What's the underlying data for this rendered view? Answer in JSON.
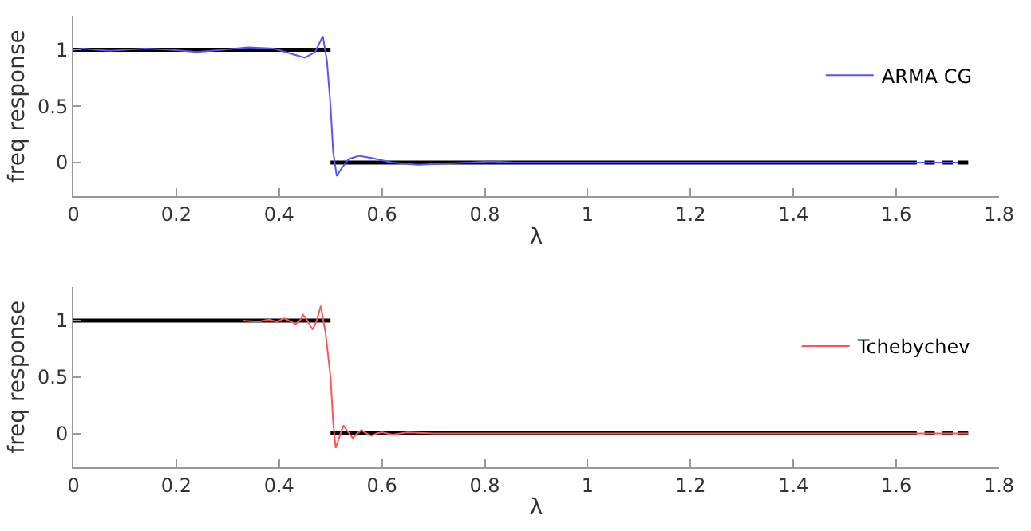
{
  "chart_data": [
    {
      "type": "line",
      "xlabel": "λ",
      "ylabel": "freq response",
      "xlim": [
        0,
        1.8
      ],
      "ylim": [
        -0.3,
        1.3
      ],
      "xticks": [
        0,
        0.2,
        0.4,
        0.6,
        0.8,
        1,
        1.2,
        1.4,
        1.6,
        1.8
      ],
      "yticks": [
        0,
        0.5,
        1
      ],
      "legend": "top right",
      "marker": "none",
      "line_style": "solid",
      "series": [
        {
          "color": "#000000",
          "x": [
            0,
            0.5,
            null,
            0.5,
            1.64,
            null,
            1.655,
            1.675,
            null,
            1.69,
            1.71,
            null,
            1.72,
            1.74
          ],
          "values": [
            1,
            1,
            null,
            0,
            0,
            null,
            0,
            0,
            null,
            0,
            0,
            null,
            0,
            0
          ]
        },
        {
          "name": "ARMA CG",
          "color": "#5555ff",
          "x": [
            0,
            0.02,
            0.045,
            0.07,
            0.1,
            0.14,
            0.19,
            0.24,
            0.29,
            0.34,
            0.39,
            0.42,
            0.45,
            0.47,
            0.485,
            0.493,
            0.5,
            0.505,
            0.512,
            0.52,
            0.535,
            0.555,
            0.58,
            0.62,
            0.67,
            0.72,
            0.77,
            0.81,
            0.86,
            0.95,
            1.2,
            1.5,
            1.72
          ],
          "values": [
            1,
            1.01,
            1,
            0.99,
            1,
            1.01,
            1,
            0.98,
            1,
            1.02,
            1.01,
            0.97,
            0.93,
            0.98,
            1.12,
            0.9,
            0.5,
            0.1,
            -0.12,
            -0.06,
            0.03,
            0.06,
            0.04,
            0.0,
            -0.02,
            -0.01,
            0.0,
            0.01,
            0.0,
            0,
            0,
            0,
            0
          ]
        }
      ]
    },
    {
      "type": "line",
      "xlabel": "λ",
      "ylabel": "freq response",
      "xlim": [
        0,
        1.8
      ],
      "ylim": [
        -0.3,
        1.3
      ],
      "xticks": [
        0,
        0.2,
        0.4,
        0.6,
        0.8,
        1,
        1.2,
        1.4,
        1.6,
        1.8
      ],
      "yticks": [
        0,
        0.5,
        1
      ],
      "legend": "top right",
      "marker": "none",
      "line_style": "solid",
      "series": [
        {
          "color": "#000000",
          "x": [
            0,
            0.5,
            null,
            0.5,
            1.64,
            null,
            1.655,
            1.675,
            null,
            1.69,
            1.71,
            null,
            1.72,
            1.74
          ],
          "values": [
            1,
            1,
            null,
            0,
            0,
            null,
            0,
            0,
            null,
            0,
            0,
            null,
            0,
            0
          ]
        },
        {
          "name": "Tchebychev",
          "color": "#ff5555",
          "x": [
            0.33,
            0.36,
            0.38,
            0.395,
            0.41,
            0.42,
            0.432,
            0.44,
            0.447,
            0.455,
            0.465,
            0.473,
            0.481,
            0.49,
            0.5,
            0.505,
            0.51,
            0.518,
            0.525,
            0.533,
            0.543,
            0.552,
            0.56,
            0.57,
            0.58,
            0.59,
            0.6,
            0.62,
            0.65,
            0.7,
            1,
            1.4,
            1.74
          ],
          "values": [
            1,
            0.99,
            1.01,
            0.99,
            1.02,
            1,
            0.97,
            1,
            1.05,
            1,
            0.92,
            1,
            1.13,
            0.9,
            0.5,
            0.1,
            -0.13,
            -0.02,
            0.07,
            0.02,
            -0.04,
            0,
            0.03,
            0,
            -0.02,
            0,
            0.01,
            -0.01,
            0.01,
            0,
            0,
            0,
            0
          ]
        }
      ]
    }
  ]
}
